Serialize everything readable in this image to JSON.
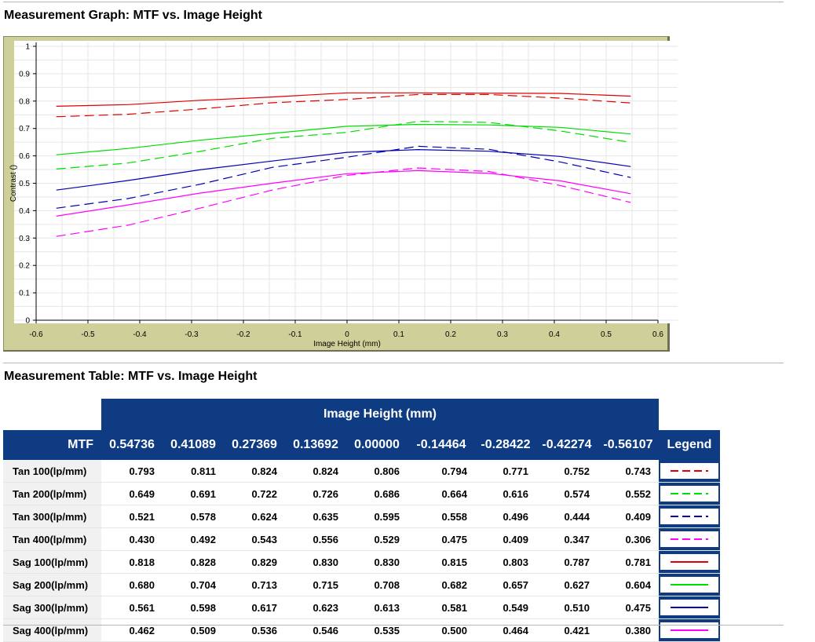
{
  "graph_section": {
    "title": "Measurement Graph: MTF vs. Image Height"
  },
  "table_section": {
    "title": "Measurement Table: MTF vs. Image Height"
  },
  "chart_data": {
    "type": "line",
    "xlabel": "Image Height (mm)",
    "ylabel": "Contrast ()",
    "xlim": [
      -0.6,
      0.6
    ],
    "ylim": [
      0,
      1
    ],
    "xticks": [
      "-0.6",
      "-0.5",
      "-0.4",
      "-0.3",
      "-0.2",
      "-0.1",
      "0",
      "0.1",
      "0.2",
      "0.3",
      "0.4",
      "0.5",
      "0.6"
    ],
    "yticks": [
      "0",
      "0.1",
      "0.2",
      "0.3",
      "0.4",
      "0.5",
      "0.6",
      "0.7",
      "0.8",
      "0.9",
      "1"
    ],
    "grid": true,
    "x": [
      0.54736,
      0.41089,
      0.27369,
      0.13692,
      0.0,
      -0.14464,
      -0.28422,
      -0.42274,
      -0.56107
    ],
    "series": [
      {
        "name": "Tan 100(lp/mm)",
        "color": "#e00000",
        "dash": true,
        "values": [
          0.793,
          0.811,
          0.824,
          0.824,
          0.806,
          0.794,
          0.771,
          0.752,
          0.743
        ]
      },
      {
        "name": "Tan 200(lp/mm)",
        "color": "#00dd00",
        "dash": true,
        "values": [
          0.649,
          0.691,
          0.722,
          0.726,
          0.686,
          0.664,
          0.616,
          0.574,
          0.552
        ]
      },
      {
        "name": "Tan 300(lp/mm)",
        "color": "#0000b0",
        "dash": true,
        "values": [
          0.521,
          0.578,
          0.624,
          0.635,
          0.595,
          0.558,
          0.496,
          0.444,
          0.409
        ]
      },
      {
        "name": "Tan 400(lp/mm)",
        "color": "#ff00ff",
        "dash": true,
        "values": [
          0.43,
          0.492,
          0.543,
          0.556,
          0.529,
          0.475,
          0.409,
          0.347,
          0.306
        ]
      },
      {
        "name": "Sag 100(lp/mm)",
        "color": "#e00000",
        "dash": false,
        "values": [
          0.818,
          0.828,
          0.829,
          0.83,
          0.83,
          0.815,
          0.803,
          0.787,
          0.781
        ]
      },
      {
        "name": "Sag 200(lp/mm)",
        "color": "#00dd00",
        "dash": false,
        "values": [
          0.68,
          0.704,
          0.713,
          0.715,
          0.708,
          0.682,
          0.657,
          0.627,
          0.604
        ]
      },
      {
        "name": "Sag 300(lp/mm)",
        "color": "#0000b0",
        "dash": false,
        "values": [
          0.561,
          0.598,
          0.617,
          0.623,
          0.613,
          0.581,
          0.549,
          0.51,
          0.475
        ]
      },
      {
        "name": "Sag 400(lp/mm)",
        "color": "#ff00ff",
        "dash": false,
        "values": [
          0.462,
          0.509,
          0.536,
          0.546,
          0.535,
          0.5,
          0.464,
          0.421,
          0.38
        ]
      }
    ]
  },
  "table": {
    "group_header": "Image Height (mm)",
    "mtf_header": "MTF",
    "legend_header": "Legend",
    "columns": [
      "0.54736",
      "0.41089",
      "0.27369",
      "0.13692",
      "0.00000",
      "-0.14464",
      "-0.28422",
      "-0.42274",
      "-0.56107"
    ],
    "rows": [
      {
        "label": "Tan 100(lp/mm)",
        "values": [
          "0.793",
          "0.811",
          "0.824",
          "0.824",
          "0.806",
          "0.794",
          "0.771",
          "0.752",
          "0.743"
        ]
      },
      {
        "label": "Tan 200(lp/mm)",
        "values": [
          "0.649",
          "0.691",
          "0.722",
          "0.726",
          "0.686",
          "0.664",
          "0.616",
          "0.574",
          "0.552"
        ]
      },
      {
        "label": "Tan 300(lp/mm)",
        "values": [
          "0.521",
          "0.578",
          "0.624",
          "0.635",
          "0.595",
          "0.558",
          "0.496",
          "0.444",
          "0.409"
        ]
      },
      {
        "label": "Tan 400(lp/mm)",
        "values": [
          "0.430",
          "0.492",
          "0.543",
          "0.556",
          "0.529",
          "0.475",
          "0.409",
          "0.347",
          "0.306"
        ]
      },
      {
        "label": "Sag 100(lp/mm)",
        "values": [
          "0.818",
          "0.828",
          "0.829",
          "0.830",
          "0.830",
          "0.815",
          "0.803",
          "0.787",
          "0.781"
        ]
      },
      {
        "label": "Sag 200(lp/mm)",
        "values": [
          "0.680",
          "0.704",
          "0.713",
          "0.715",
          "0.708",
          "0.682",
          "0.657",
          "0.627",
          "0.604"
        ]
      },
      {
        "label": "Sag 300(lp/mm)",
        "values": [
          "0.561",
          "0.598",
          "0.617",
          "0.623",
          "0.613",
          "0.581",
          "0.549",
          "0.510",
          "0.475"
        ]
      },
      {
        "label": "Sag 400(lp/mm)",
        "values": [
          "0.462",
          "0.509",
          "0.536",
          "0.546",
          "0.535",
          "0.500",
          "0.464",
          "0.421",
          "0.380"
        ]
      }
    ]
  }
}
